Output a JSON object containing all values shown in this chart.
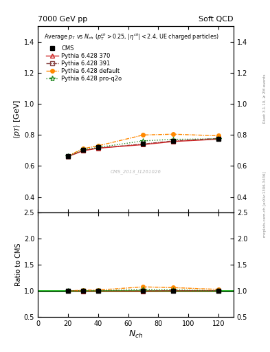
{
  "title_left": "7000 GeV pp",
  "title_right": "Soft QCD",
  "xlabel": "N_{ch}",
  "ylabel_main": "<p_{T}> [GeV]",
  "ylabel_ratio": "Ratio to CMS",
  "right_label_top": "Rivet 3.1.10, ≥ 2M events",
  "right_label_bottom": "mcplots.cern.ch [arXiv:1306.3436]",
  "watermark": "CMS_2013_I1261026",
  "xlim": [
    0,
    130
  ],
  "ylim_main": [
    0.3,
    1.5
  ],
  "ylim_ratio": [
    0.5,
    2.5
  ],
  "yticks_main": [
    0.4,
    0.6,
    0.8,
    1.0,
    1.2,
    1.4
  ],
  "yticks_ratio": [
    0.5,
    1.0,
    1.5,
    2.0,
    2.5
  ],
  "xticks": [
    0,
    20,
    40,
    60,
    80,
    100,
    120
  ],
  "cms_x": [
    20,
    30,
    40,
    70,
    90,
    120
  ],
  "cms_y": [
    0.665,
    0.705,
    0.72,
    0.745,
    0.76,
    0.775
  ],
  "cms_yerr": [
    0.005,
    0.005,
    0.005,
    0.005,
    0.005,
    0.005
  ],
  "p370_x": [
    20,
    30,
    40,
    70,
    90,
    120
  ],
  "p370_y": [
    0.662,
    0.698,
    0.715,
    0.738,
    0.758,
    0.773
  ],
  "p391_x": [
    20,
    30,
    40,
    70,
    90,
    120
  ],
  "p391_y": [
    0.66,
    0.7,
    0.716,
    0.742,
    0.762,
    0.778
  ],
  "pdef_x": [
    20,
    30,
    40,
    70,
    90,
    120
  ],
  "pdef_y": [
    0.665,
    0.712,
    0.73,
    0.8,
    0.805,
    0.795
  ],
  "pq2o_x": [
    20,
    30,
    40,
    70,
    90,
    120
  ],
  "pq2o_y": [
    0.663,
    0.705,
    0.72,
    0.762,
    0.772,
    0.775
  ],
  "ratio_p370": [
    0.997,
    0.99,
    0.993,
    0.99,
    0.996,
    0.997
  ],
  "ratio_p391": [
    0.994,
    0.993,
    0.994,
    0.997,
    1.002,
    1.004
  ],
  "ratio_pdef": [
    1.0,
    1.01,
    1.014,
    1.074,
    1.06,
    1.026
  ],
  "ratio_pq2o": [
    0.997,
    1.0,
    1.0,
    1.023,
    1.016,
    1.0
  ],
  "cms_color": "#000000",
  "p370_color": "#cc2222",
  "p391_color": "#884444",
  "pdef_color": "#ff8800",
  "pq2o_color": "#228822",
  "bg_color": "#ffffff"
}
